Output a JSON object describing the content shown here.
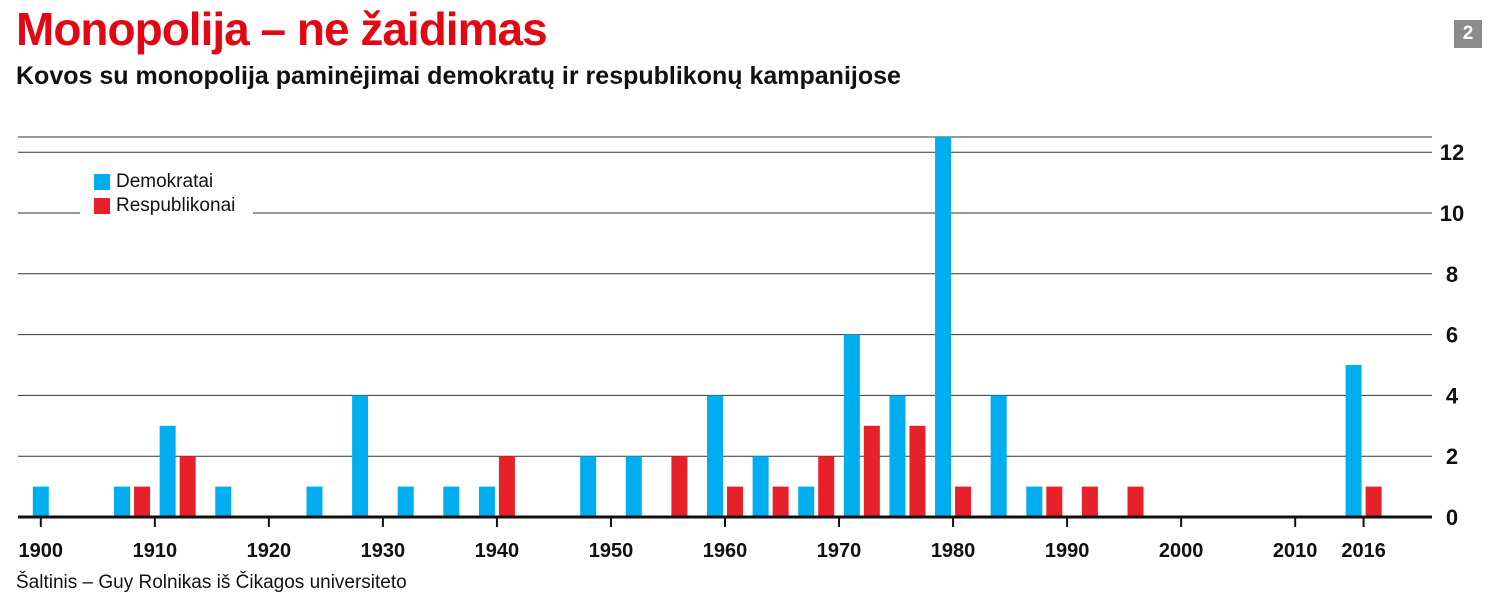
{
  "header": {
    "title": "Monopolija – ne žaidimas",
    "subtitle": "Kovos su monopolija paminėjimai demokratų ir respublikonų kampanijose",
    "badge": "2"
  },
  "footer": {
    "source": "Šaltinis – Guy Rolnikas iš Čikagos universiteto"
  },
  "colors": {
    "demokratai": "#00aeef",
    "respublikonai": "#e8202a"
  },
  "chart_data": {
    "type": "bar",
    "xlabel": "",
    "ylabel": "",
    "ylim": [
      0,
      12.5
    ],
    "xlim": [
      1898,
      2022
    ],
    "y_ticks": [
      0,
      2,
      4,
      6,
      8,
      10,
      12
    ],
    "x_ticks": [
      1900,
      1910,
      1920,
      1930,
      1940,
      1950,
      1960,
      1970,
      1980,
      1990,
      2000,
      2010,
      2016
    ],
    "y_axis_position": "right",
    "grid": true,
    "legend_position": "top-left",
    "series": [
      {
        "name": "Demokratai",
        "color": "#00aeef",
        "points": [
          {
            "x": 1900,
            "y": 1
          },
          {
            "x": 1908,
            "y": 1
          },
          {
            "x": 1912,
            "y": 3
          },
          {
            "x": 1916,
            "y": 1
          },
          {
            "x": 1924,
            "y": 1
          },
          {
            "x": 1928,
            "y": 4
          },
          {
            "x": 1932,
            "y": 1
          },
          {
            "x": 1936,
            "y": 1
          },
          {
            "x": 1940,
            "y": 1
          },
          {
            "x": 1948,
            "y": 2
          },
          {
            "x": 1952,
            "y": 2
          },
          {
            "x": 1960,
            "y": 4
          },
          {
            "x": 1964,
            "y": 2
          },
          {
            "x": 1968,
            "y": 1
          },
          {
            "x": 1972,
            "y": 6
          },
          {
            "x": 1976,
            "y": 4
          },
          {
            "x": 1980,
            "y": 12.5
          },
          {
            "x": 1984,
            "y": 4
          },
          {
            "x": 1988,
            "y": 1
          },
          {
            "x": 2016,
            "y": 5
          }
        ]
      },
      {
        "name": "Respublikonai",
        "color": "#e8202a",
        "points": [
          {
            "x": 1908,
            "y": 1
          },
          {
            "x": 1912,
            "y": 2
          },
          {
            "x": 1940,
            "y": 2
          },
          {
            "x": 1956,
            "y": 2
          },
          {
            "x": 1960,
            "y": 1
          },
          {
            "x": 1964,
            "y": 1
          },
          {
            "x": 1968,
            "y": 2
          },
          {
            "x": 1972,
            "y": 3
          },
          {
            "x": 1976,
            "y": 3
          },
          {
            "x": 1980,
            "y": 1
          },
          {
            "x": 1988,
            "y": 1
          },
          {
            "x": 1992,
            "y": 1
          },
          {
            "x": 1996,
            "y": 1
          },
          {
            "x": 2016,
            "y": 1
          }
        ]
      }
    ]
  }
}
